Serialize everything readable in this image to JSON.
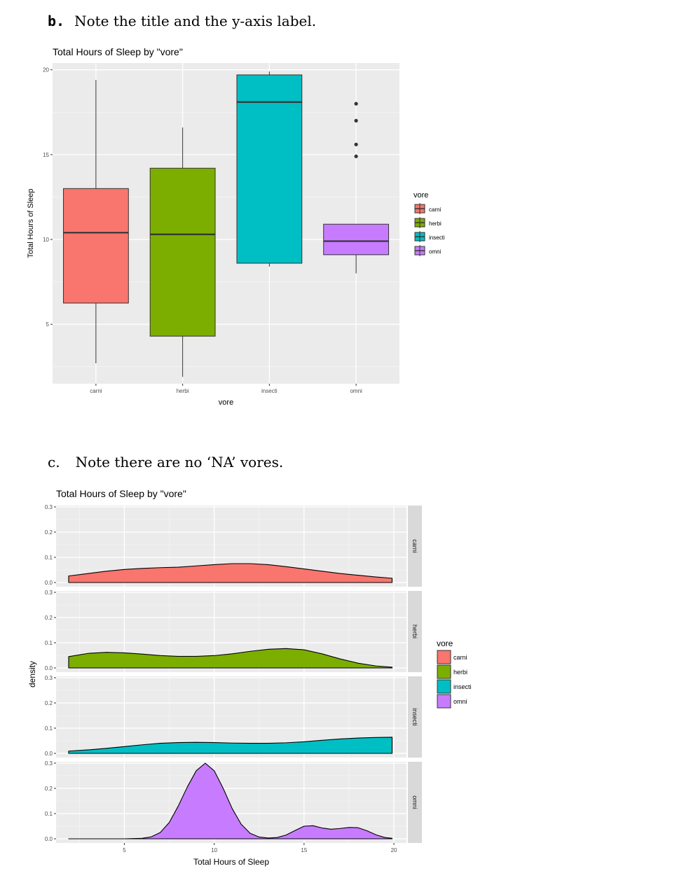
{
  "notes": {
    "b": {
      "label": "b.",
      "text": "Note the title and the y-axis label."
    },
    "c": {
      "label": "c.",
      "text": "Note there are no ‘NA’ vores."
    }
  },
  "colors": {
    "carni": "#F8766D",
    "herbi": "#7CAE00",
    "insecti": "#00BFC4",
    "omni": "#C77CFF",
    "panel_bg": "#EBEBEB",
    "strip_bg": "#D9D9D9",
    "grid_major": "#FFFFFF"
  },
  "chart_data": [
    {
      "type": "boxplot",
      "title": "Total Hours of Sleep by \"vore\"",
      "xlabel": "vore",
      "ylabel": "Total Hours of Sleep",
      "categories": [
        "carni",
        "herbi",
        "insecti",
        "omni"
      ],
      "ylim": [
        1.5,
        20.4
      ],
      "yticks": [
        5,
        10,
        15,
        20
      ],
      "grid": true,
      "boxes": [
        {
          "name": "carni",
          "whisker_low": 2.7,
          "q1": 6.25,
          "median": 10.4,
          "q3": 13.0,
          "whisker_high": 19.4,
          "outliers": []
        },
        {
          "name": "herbi",
          "whisker_low": 1.9,
          "q1": 4.3,
          "median": 10.3,
          "q3": 14.2,
          "whisker_high": 16.6,
          "outliers": []
        },
        {
          "name": "insecti",
          "whisker_low": 8.4,
          "q1": 8.6,
          "median": 18.1,
          "q3": 19.7,
          "whisker_high": 19.9,
          "outliers": []
        },
        {
          "name": "omni",
          "whisker_low": 8.0,
          "q1": 9.1,
          "median": 9.9,
          "q3": 10.9,
          "whisker_high": 10.9,
          "outliers": [
            18.0,
            17.0,
            15.6,
            14.9
          ]
        }
      ],
      "legend": {
        "title": "vore",
        "entries": [
          "carni",
          "herbi",
          "insecti",
          "omni"
        ],
        "position": "right"
      }
    },
    {
      "type": "area",
      "subtype": "density, faceted by vore",
      "title": "Total Hours of Sleep by \"vore\"",
      "xlabel": "Total Hours of Sleep",
      "ylabel": "density",
      "xlim": [
        1.2,
        20.7
      ],
      "xticks": [
        5,
        10,
        15,
        20
      ],
      "ylim": [
        0,
        0.3
      ],
      "yticks": [
        "0.0",
        "0.1",
        "0.2",
        "0.3"
      ],
      "grid": true,
      "series": [
        {
          "name": "carni",
          "x": [
            1.9,
            3,
            4,
            5,
            6,
            7,
            8,
            9,
            10,
            11,
            12,
            13,
            14,
            15,
            16,
            17,
            18,
            19,
            19.9
          ],
          "values": [
            0.026,
            0.036,
            0.045,
            0.052,
            0.056,
            0.059,
            0.061,
            0.066,
            0.071,
            0.075,
            0.075,
            0.071,
            0.063,
            0.054,
            0.045,
            0.036,
            0.029,
            0.022,
            0.017
          ]
        },
        {
          "name": "herbi",
          "x": [
            1.9,
            3,
            4,
            5,
            6,
            7,
            8,
            9,
            10,
            11,
            12,
            13,
            14,
            15,
            16,
            17,
            18,
            19,
            19.9
          ],
          "values": [
            0.045,
            0.058,
            0.062,
            0.06,
            0.055,
            0.049,
            0.046,
            0.046,
            0.049,
            0.056,
            0.066,
            0.074,
            0.077,
            0.072,
            0.056,
            0.036,
            0.019,
            0.008,
            0.003
          ]
        },
        {
          "name": "insecti",
          "x": [
            1.9,
            3,
            4,
            5,
            6,
            7,
            8,
            9,
            10,
            11,
            12,
            13,
            14,
            15,
            16,
            17,
            18,
            19,
            19.9
          ],
          "values": [
            0.009,
            0.014,
            0.02,
            0.027,
            0.034,
            0.04,
            0.043,
            0.044,
            0.043,
            0.041,
            0.04,
            0.04,
            0.042,
            0.046,
            0.052,
            0.057,
            0.061,
            0.063,
            0.064
          ]
        },
        {
          "name": "omni",
          "x": [
            1.9,
            5,
            6,
            6.5,
            7,
            7.5,
            8,
            8.5,
            9,
            9.5,
            10,
            10.5,
            11,
            11.5,
            12,
            12.5,
            13,
            13.5,
            14,
            14.5,
            15,
            15.5,
            16,
            16.5,
            17,
            17.5,
            18,
            18.5,
            19,
            19.5,
            19.9
          ],
          "values": [
            0,
            0,
            0.002,
            0.008,
            0.025,
            0.065,
            0.13,
            0.205,
            0.27,
            0.3,
            0.27,
            0.2,
            0.12,
            0.058,
            0.022,
            0.007,
            0.003,
            0.005,
            0.015,
            0.033,
            0.05,
            0.052,
            0.043,
            0.038,
            0.041,
            0.045,
            0.044,
            0.032,
            0.016,
            0.005,
            0.002
          ]
        }
      ],
      "facets": [
        "carni",
        "herbi",
        "insecti",
        "omni"
      ],
      "legend": {
        "title": "vore",
        "entries": [
          "carni",
          "herbi",
          "insecti",
          "omni"
        ],
        "position": "right"
      }
    }
  ]
}
